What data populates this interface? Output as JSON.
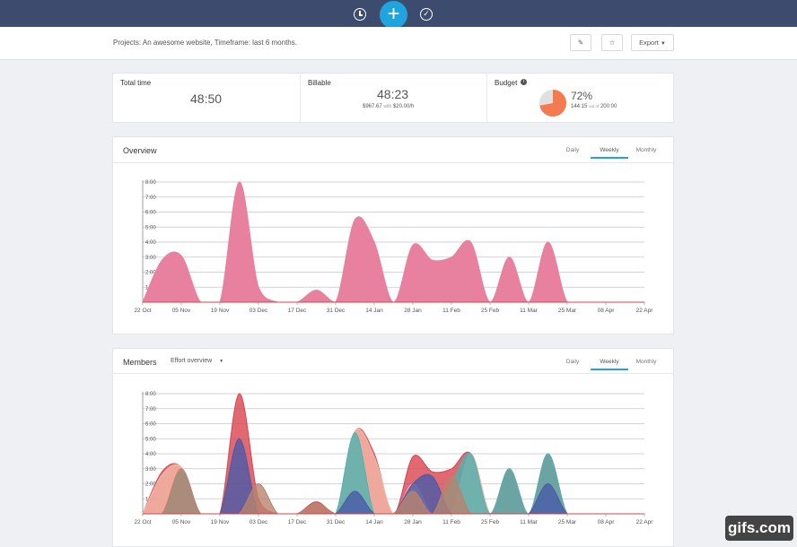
{
  "topbar": {
    "plus_label": "+",
    "icons": [
      "clock-icon",
      "add-icon",
      "check-circle-icon"
    ]
  },
  "subbar": {
    "project_text": "Projects: An awesome website,  Timeframe: last 6 months.",
    "export_label": "Export",
    "edit_icon": "pencil-icon",
    "star_icon": "star-icon"
  },
  "stats": {
    "total": {
      "label": "Total time",
      "value": "48:50"
    },
    "billable": {
      "label": "Billable",
      "value": "48:23",
      "sub_amount": "$967.67",
      "sub_with": "with",
      "sub_rate": "$20.00/h"
    },
    "budget": {
      "label": "Budget",
      "percent": "72%",
      "used": "144:15",
      "of": "out of",
      "total": "200:00",
      "fraction": 0.72
    }
  },
  "overview": {
    "title": "Overview",
    "tabs": [
      "Daily",
      "Weekly",
      "Monthly"
    ],
    "active_tab": "Weekly"
  },
  "members": {
    "title": "Members",
    "dropdown": "Effort overview",
    "tabs": [
      "Daily",
      "Weekly",
      "Monthly"
    ],
    "active_tab": "Weekly"
  },
  "watermark": "gifs.com",
  "colors": {
    "accent": "#1fa4de",
    "topbar": "#3d4c6e",
    "overview_fill": "#e8809f",
    "budget": "#f47a50"
  },
  "chart_data": [
    {
      "type": "area",
      "x": [
        "22 Oct",
        "29 Oct",
        "05 Nov",
        "12 Nov",
        "19 Nov",
        "26 Nov",
        "03 Dec",
        "10 Dec",
        "17 Dec",
        "24 Dec",
        "31 Dec",
        "07 Jan",
        "14 Jan",
        "21 Jan",
        "28 Jan",
        "04 Feb",
        "11 Feb",
        "18 Feb",
        "25 Feb",
        "04 Mar",
        "11 Mar",
        "18 Mar",
        "25 Mar",
        "01 Apr",
        "08 Apr",
        "15 Apr",
        "22 Apr"
      ],
      "tick_labels": [
        "22 Oct",
        "05 Nov",
        "19 Nov",
        "03 Dec",
        "17 Dec",
        "31 Dec",
        "14 Jan",
        "28 Jan",
        "11 Feb",
        "25 Feb",
        "11 Mar",
        "25 Mar",
        "08 Apr",
        "22 Apr"
      ],
      "y_ticks": [
        "1:00",
        "2:00",
        "3:00",
        "4:00",
        "5:00",
        "6:00",
        "7:00",
        "8:00"
      ],
      "ylim": [
        0,
        8
      ],
      "series": [
        {
          "color": "#e8809f",
          "values": [
            0,
            2.8,
            3.1,
            0,
            0,
            8,
            1.0,
            0,
            0,
            0.8,
            0,
            5.5,
            4.0,
            0,
            3.8,
            2.8,
            3.0,
            4.0,
            0,
            3.0,
            0,
            4.0,
            0,
            0,
            0,
            0,
            0
          ]
        }
      ]
    },
    {
      "type": "area",
      "x": [
        "22 Oct",
        "29 Oct",
        "05 Nov",
        "12 Nov",
        "19 Nov",
        "26 Nov",
        "03 Dec",
        "10 Dec",
        "17 Dec",
        "24 Dec",
        "31 Dec",
        "07 Jan",
        "14 Jan",
        "21 Jan",
        "28 Jan",
        "04 Feb",
        "11 Feb",
        "18 Feb",
        "25 Feb",
        "04 Mar",
        "11 Mar",
        "18 Mar",
        "25 Mar",
        "01 Apr",
        "08 Apr",
        "15 Apr",
        "22 Apr"
      ],
      "tick_labels": [
        "22 Oct",
        "05 Nov",
        "19 Nov",
        "03 Dec",
        "17 Dec",
        "31 Dec",
        "14 Jan",
        "28 Jan",
        "11 Feb",
        "25 Feb",
        "11 Mar",
        "25 Mar",
        "08 Apr",
        "22 Apr"
      ],
      "y_ticks": [
        "1:00",
        "2:00",
        "3:00",
        "4:00",
        "5:00",
        "6:00",
        "7:00",
        "8:00"
      ],
      "ylim": [
        0,
        8
      ],
      "series": [
        {
          "color": "#d9434f",
          "values": [
            0,
            2.8,
            3.1,
            0,
            0,
            8,
            1.0,
            0,
            0,
            0.8,
            0,
            5.5,
            4.0,
            0,
            3.8,
            2.8,
            3.0,
            4.0,
            0,
            3.0,
            0,
            4.0,
            0,
            0,
            0,
            0,
            0
          ]
        },
        {
          "color": "#f2b9a6",
          "values": [
            0,
            2.6,
            3.1,
            0,
            0,
            0,
            0,
            0,
            0,
            0,
            0,
            5.5,
            3.8,
            0,
            2.0,
            0,
            0,
            4.0,
            0,
            0,
            0,
            0,
            0,
            0,
            0,
            0,
            0
          ]
        },
        {
          "color": "#4fb3b0",
          "values": [
            0,
            0,
            2.8,
            0,
            0,
            0,
            0,
            0,
            0,
            0,
            0,
            5.4,
            0,
            0,
            0,
            0,
            2.0,
            4.0,
            0,
            3.0,
            0,
            4.0,
            0,
            0,
            0,
            0,
            0
          ]
        },
        {
          "color": "#4a5aa8",
          "values": [
            0,
            0,
            0,
            0,
            0,
            5.0,
            0,
            0,
            0,
            0,
            0,
            1.5,
            0,
            0,
            2.0,
            2.5,
            0,
            0,
            0,
            0,
            0,
            2.0,
            0,
            0,
            0,
            0,
            0
          ]
        },
        {
          "color": "#b8836e",
          "values": [
            0,
            0,
            3.0,
            0,
            0,
            0,
            2.0,
            0,
            0,
            0.7,
            0,
            0,
            0,
            0,
            1.5,
            0,
            2.5,
            0,
            0,
            0,
            0,
            0,
            0,
            0,
            0,
            0,
            0
          ]
        }
      ]
    }
  ]
}
